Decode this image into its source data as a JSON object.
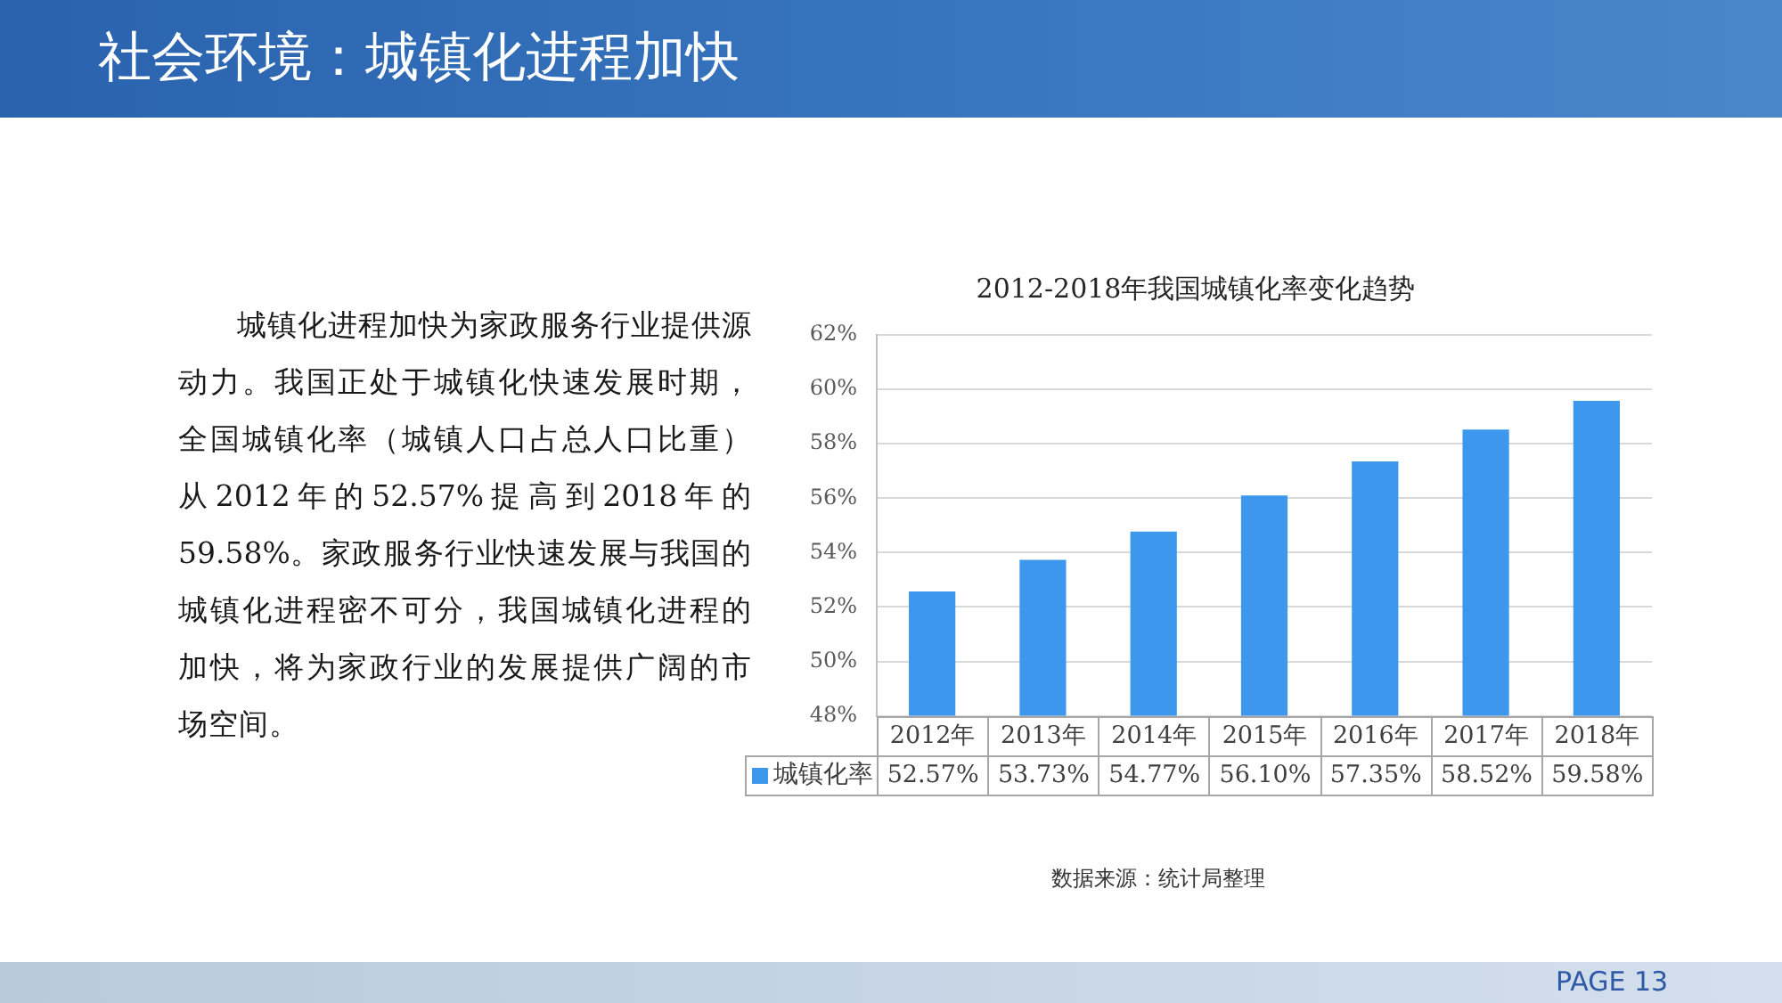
{
  "chart_data": {
    "type": "bar",
    "title": "2012-2018年我国城镇化率变化趋势",
    "categories": [
      "2012年",
      "2013年",
      "2014年",
      "2015年",
      "2016年",
      "2017年",
      "2018年"
    ],
    "series": [
      {
        "name": "城镇化率",
        "color": "#3d97ec",
        "values": [
          52.57,
          53.73,
          54.77,
          56.1,
          57.35,
          58.52,
          59.58
        ],
        "value_labels": [
          "52.57%",
          "53.73%",
          "54.77%",
          "56.10%",
          "57.35%",
          "58.52%",
          "59.58%"
        ]
      }
    ],
    "ylim": [
      48,
      62
    ],
    "yticks": [
      {
        "value": 48,
        "label": "48%"
      },
      {
        "value": 50,
        "label": "50%"
      },
      {
        "value": 52,
        "label": "52%"
      },
      {
        "value": 54,
        "label": "54%"
      },
      {
        "value": 56,
        "label": "56%"
      },
      {
        "value": 58,
        "label": "58%"
      },
      {
        "value": 60,
        "label": "60%"
      },
      {
        "value": 62,
        "label": "62%"
      }
    ],
    "grid": "y",
    "legend": "bottom",
    "annotations": [
      "社会环境：城镇化进程加快",
      "城镇化进程加快为家政服务行业提供源动力。我国正处于城镇化快速发展时期，全国城镇化率（城镇人口占总人口比重）从2012年的52.57%提高到2018年的59.58%。家政服务行业快速发展与我国的城镇化进程密不可分，我国城镇化进程的加快，将为家政行业的发展提供广阔的市场空间。",
      "数据来源：统计局整理",
      "PAGE 13"
    ]
  }
}
